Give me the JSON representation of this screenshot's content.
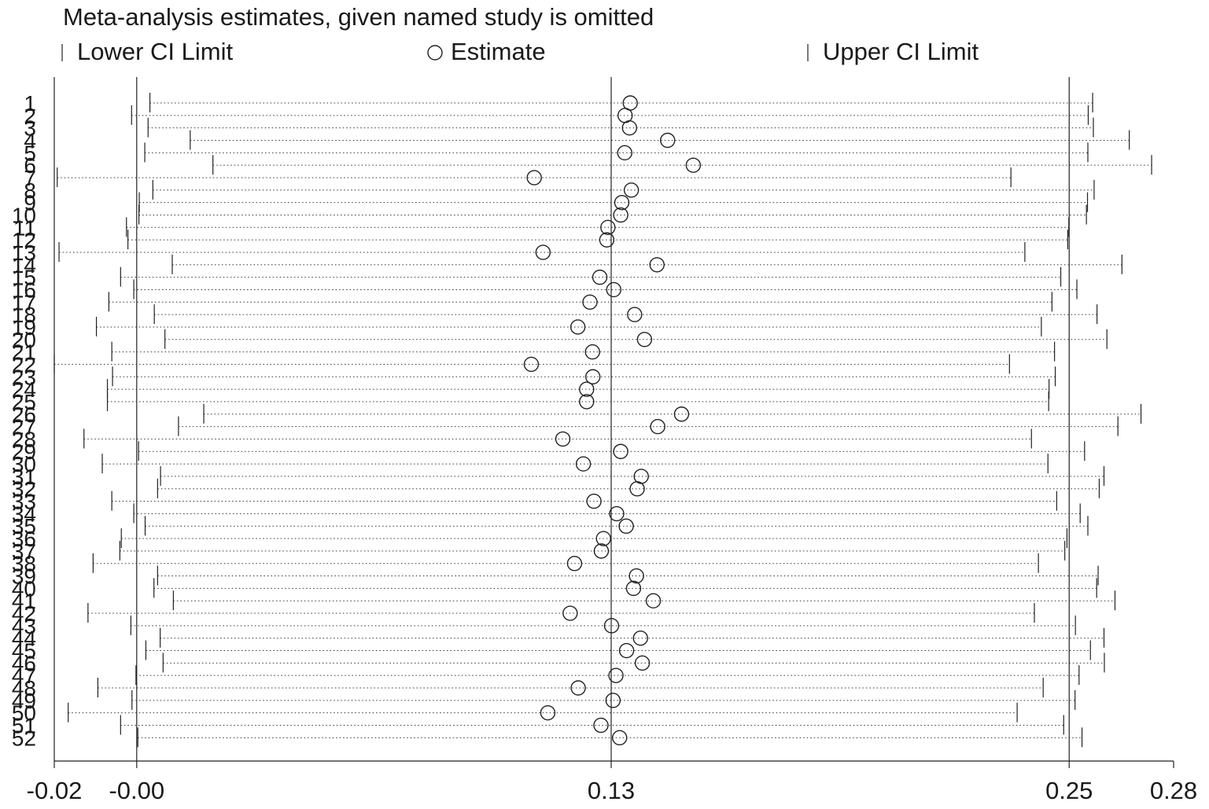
{
  "chart_data": {
    "type": "scatter",
    "title": "Meta-analysis estimates, given named study is omitted",
    "legend": {
      "placement": "top",
      "lower": "Lower CI Limit",
      "estimate": "Estimate",
      "upper": "Upper CI Limit"
    },
    "xlim": [
      -0.0225,
      0.283
    ],
    "xticks": [
      {
        "value": -0.0225,
        "label": "-0.02"
      },
      {
        "value": 0.0,
        "label": "-0.00"
      },
      {
        "value": 0.1295,
        "label": "0.13"
      },
      {
        "value": 0.2545,
        "label": "0.25"
      },
      {
        "value": 0.283,
        "label": "0.28"
      }
    ],
    "reference_lines": [
      0.0,
      0.1295,
      0.2545
    ],
    "studies": [
      {
        "label": "1",
        "lower": 0.0036,
        "estimate": 0.1347,
        "upper": 0.2609
      },
      {
        "label": "2",
        "lower": -0.0014,
        "estimate": 0.1333,
        "upper": 0.2597
      },
      {
        "label": "3",
        "lower": 0.0031,
        "estimate": 0.1345,
        "upper": 0.2611
      },
      {
        "label": "4",
        "lower": 0.0146,
        "estimate": 0.1449,
        "upper": 0.2709
      },
      {
        "label": "5",
        "lower": 0.0022,
        "estimate": 0.1332,
        "upper": 0.2596
      },
      {
        "label": "6",
        "lower": 0.0208,
        "estimate": 0.1519,
        "upper": 0.277
      },
      {
        "label": "7",
        "lower": -0.0217,
        "estimate": 0.1085,
        "upper": 0.2386
      },
      {
        "label": "8",
        "lower": 0.0044,
        "estimate": 0.135,
        "upper": 0.2613
      },
      {
        "label": "9",
        "lower": 0.0007,
        "estimate": 0.1324,
        "upper": 0.2595
      },
      {
        "label": "10",
        "lower": 0.0006,
        "estimate": 0.1321,
        "upper": 0.2592
      },
      {
        "label": "11",
        "lower": -0.0028,
        "estimate": 0.1286,
        "upper": 0.2544
      },
      {
        "label": "12",
        "lower": -0.0024,
        "estimate": 0.1283,
        "upper": 0.2541
      },
      {
        "label": "13",
        "lower": -0.0212,
        "estimate": 0.1109,
        "upper": 0.2424
      },
      {
        "label": "14",
        "lower": 0.0097,
        "estimate": 0.142,
        "upper": 0.2689
      },
      {
        "label": "15",
        "lower": -0.0044,
        "estimate": 0.1264,
        "upper": 0.2522
      },
      {
        "label": "16",
        "lower": -0.0008,
        "estimate": 0.1302,
        "upper": 0.2566
      },
      {
        "label": "17",
        "lower": -0.0076,
        "estimate": 0.1237,
        "upper": 0.2498
      },
      {
        "label": "18",
        "lower": 0.0048,
        "estimate": 0.1359,
        "upper": 0.2621
      },
      {
        "label": "19",
        "lower": -0.011,
        "estimate": 0.1204,
        "upper": 0.2469
      },
      {
        "label": "20",
        "lower": 0.0077,
        "estimate": 0.1386,
        "upper": 0.2648
      },
      {
        "label": "21",
        "lower": -0.0068,
        "estimate": 0.1244,
        "upper": 0.2505
      },
      {
        "label": "22",
        "lower": -0.0225,
        "estimate": 0.1077,
        "upper": 0.2382
      },
      {
        "label": "23",
        "lower": -0.0066,
        "estimate": 0.1245,
        "upper": 0.2507
      },
      {
        "label": "24",
        "lower": -0.008,
        "estimate": 0.1228,
        "upper": 0.249
      },
      {
        "label": "25",
        "lower": -0.008,
        "estimate": 0.1228,
        "upper": 0.2489
      },
      {
        "label": "26",
        "lower": 0.0183,
        "estimate": 0.1487,
        "upper": 0.2741
      },
      {
        "label": "27",
        "lower": 0.0114,
        "estimate": 0.1422,
        "upper": 0.2678
      },
      {
        "label": "28",
        "lower": -0.0144,
        "estimate": 0.1163,
        "upper": 0.2442
      },
      {
        "label": "29",
        "lower": 0.0005,
        "estimate": 0.1321,
        "upper": 0.2587
      },
      {
        "label": "30",
        "lower": -0.0094,
        "estimate": 0.1219,
        "upper": 0.2487
      },
      {
        "label": "31",
        "lower": 0.0065,
        "estimate": 0.1377,
        "upper": 0.264
      },
      {
        "label": "32",
        "lower": 0.0057,
        "estimate": 0.1366,
        "upper": 0.2627
      },
      {
        "label": "33",
        "lower": -0.0068,
        "estimate": 0.1248,
        "upper": 0.2511
      },
      {
        "label": "34",
        "lower": -0.0008,
        "estimate": 0.131,
        "upper": 0.2575
      },
      {
        "label": "35",
        "lower": 0.0023,
        "estimate": 0.1336,
        "upper": 0.2596
      },
      {
        "label": "36",
        "lower": -0.0042,
        "estimate": 0.1274,
        "upper": 0.2539
      },
      {
        "label": "37",
        "lower": -0.0046,
        "estimate": 0.1268,
        "upper": 0.2533
      },
      {
        "label": "38",
        "lower": -0.0119,
        "estimate": 0.1195,
        "upper": 0.2461
      },
      {
        "label": "39",
        "lower": 0.0057,
        "estimate": 0.1364,
        "upper": 0.2624
      },
      {
        "label": "40",
        "lower": 0.0047,
        "estimate": 0.1356,
        "upper": 0.262
      },
      {
        "label": "41",
        "lower": 0.01,
        "estimate": 0.141,
        "upper": 0.267
      },
      {
        "label": "42",
        "lower": -0.0133,
        "estimate": 0.1183,
        "upper": 0.245
      },
      {
        "label": "43",
        "lower": -0.0016,
        "estimate": 0.1296,
        "upper": 0.2562
      },
      {
        "label": "44",
        "lower": 0.0064,
        "estimate": 0.1375,
        "upper": 0.264
      },
      {
        "label": "45",
        "lower": 0.0025,
        "estimate": 0.1337,
        "upper": 0.2603
      },
      {
        "label": "46",
        "lower": 0.0072,
        "estimate": 0.138,
        "upper": 0.2641
      },
      {
        "label": "47",
        "lower": -0.0002,
        "estimate": 0.1308,
        "upper": 0.2572
      },
      {
        "label": "48",
        "lower": -0.0106,
        "estimate": 0.1205,
        "upper": 0.2474
      },
      {
        "label": "49",
        "lower": -0.0013,
        "estimate": 0.13,
        "upper": 0.2561
      },
      {
        "label": "50",
        "lower": -0.0187,
        "estimate": 0.1122,
        "upper": 0.2403
      },
      {
        "label": "51",
        "lower": -0.0044,
        "estimate": 0.1267,
        "upper": 0.253
      },
      {
        "label": "52",
        "lower": 0.0003,
        "estimate": 0.1318,
        "upper": 0.258
      }
    ]
  }
}
